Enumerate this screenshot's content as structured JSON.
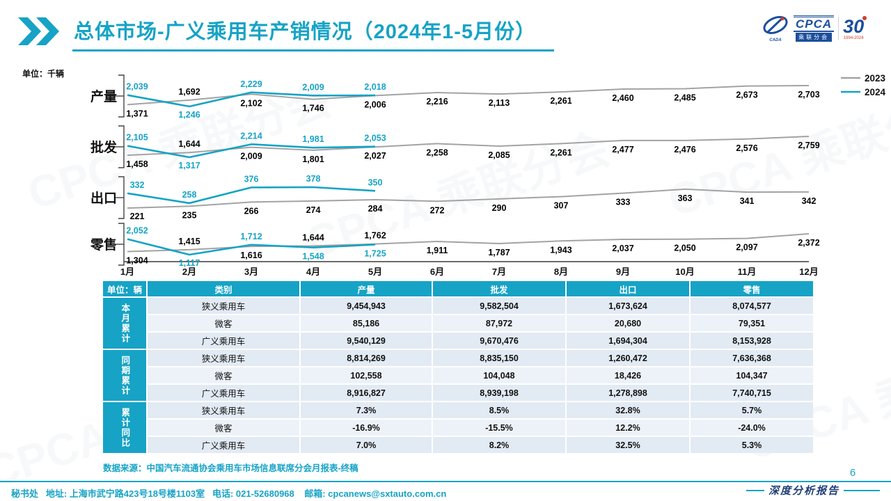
{
  "title": "总体市场-广义乘用车产销情况（2024年1-5月份）",
  "unit_label": "单位：千辆",
  "watermark": "CPCA 乘联分会",
  "logo": {
    "cada": "CADA",
    "cpca": "CPCA",
    "sub": "乘联分会",
    "thirty": "30",
    "years": "1994-2024"
  },
  "legend": [
    {
      "label": "2023",
      "color": "#a3a3a3"
    },
    {
      "label": "2024",
      "color": "#16a3c6"
    }
  ],
  "chart_data": {
    "type": "line",
    "unit": "千辆",
    "categories": [
      "1月",
      "2月",
      "3月",
      "4月",
      "5月",
      "6月",
      "7月",
      "8月",
      "9月",
      "10月",
      "11月",
      "12月"
    ],
    "legend_position": "top-right",
    "grid": false,
    "rows": [
      {
        "label": "产量",
        "series": [
          {
            "name": "2023",
            "color": "#a3a3a3",
            "values": [
              1371,
              1692,
              2102,
              1746,
              2006,
              2216,
              2113,
              2261,
              2460,
              2485,
              2673,
              2703
            ]
          },
          {
            "name": "2024",
            "color": "#16a3c6",
            "values": [
              2039,
              1246,
              2229,
              2009,
              2018
            ]
          }
        ]
      },
      {
        "label": "批发",
        "series": [
          {
            "name": "2023",
            "color": "#a3a3a3",
            "values": [
              1458,
              1644,
              2009,
              1801,
              2027,
              2258,
              2085,
              2261,
              2477,
              2476,
              2576,
              2759
            ]
          },
          {
            "name": "2024",
            "color": "#16a3c6",
            "values": [
              2105,
              1317,
              2214,
              1981,
              2053
            ]
          }
        ]
      },
      {
        "label": "出口",
        "series": [
          {
            "name": "2023",
            "color": "#a3a3a3",
            "values": [
              221,
              235,
              266,
              274,
              284,
              272,
              290,
              307,
              333,
              363,
              341,
              342
            ]
          },
          {
            "name": "2024",
            "color": "#16a3c6",
            "values": [
              332,
              258,
              376,
              378,
              350
            ]
          }
        ]
      },
      {
        "label": "零售",
        "series": [
          {
            "name": "2023",
            "color": "#a3a3a3",
            "values": [
              1304,
              1415,
              1616,
              1644,
              1762,
              1911,
              1787,
              1943,
              2037,
              2050,
              2097,
              2372
            ]
          },
          {
            "name": "2024",
            "color": "#16a3c6",
            "values": [
              2052,
              1117,
              1712,
              1548,
              1725
            ]
          }
        ]
      }
    ]
  },
  "table": {
    "unit_header": "单位：辆",
    "columns": [
      "类别",
      "产量",
      "批发",
      "出口",
      "零售"
    ],
    "groups": [
      {
        "label": "本月累计",
        "rows": [
          {
            "category": "狭义乘用车",
            "values": [
              "9,454,943",
              "9,582,504",
              "1,673,624",
              "8,074,577"
            ]
          },
          {
            "category": "微客",
            "values": [
              "85,186",
              "87,972",
              "20,680",
              "79,351"
            ]
          },
          {
            "category": "广义乘用车",
            "values": [
              "9,540,129",
              "9,670,476",
              "1,694,304",
              "8,153,928"
            ]
          }
        ]
      },
      {
        "label": "同期累计",
        "rows": [
          {
            "category": "狭义乘用车",
            "values": [
              "8,814,269",
              "8,835,150",
              "1,260,472",
              "7,636,368"
            ]
          },
          {
            "category": "微客",
            "values": [
              "102,558",
              "104,048",
              "18,426",
              "104,347"
            ]
          },
          {
            "category": "广义乘用车",
            "values": [
              "8,916,827",
              "8,939,198",
              "1,278,898",
              "7,740,715"
            ]
          }
        ]
      },
      {
        "label": "累计同比",
        "rows": [
          {
            "category": "狭义乘用车",
            "values": [
              "7.3%",
              "8.5%",
              "32.8%",
              "5.7%"
            ]
          },
          {
            "category": "微客",
            "values": [
              "-16.9%",
              "-15.5%",
              "12.2%",
              "-24.0%"
            ]
          },
          {
            "category": "广义乘用车",
            "values": [
              "7.0%",
              "8.2%",
              "32.5%",
              "5.3%"
            ]
          }
        ]
      }
    ]
  },
  "source": "数据来源：中国汽车流通协会乘用车市场信息联席分会月报表-终稿",
  "footer": {
    "left": "秘书处   地址: 上海市武宁路423号18号楼1103室   电话: 021-52680968    邮箱: cpcanews@sxtauto.com.cn",
    "report": "深度分析报告",
    "page": "6"
  },
  "colors": {
    "accent": "#16a3c6",
    "line_2023": "#a3a3a3",
    "line_2024": "#16a3c6",
    "navy": "#1f3f77"
  }
}
